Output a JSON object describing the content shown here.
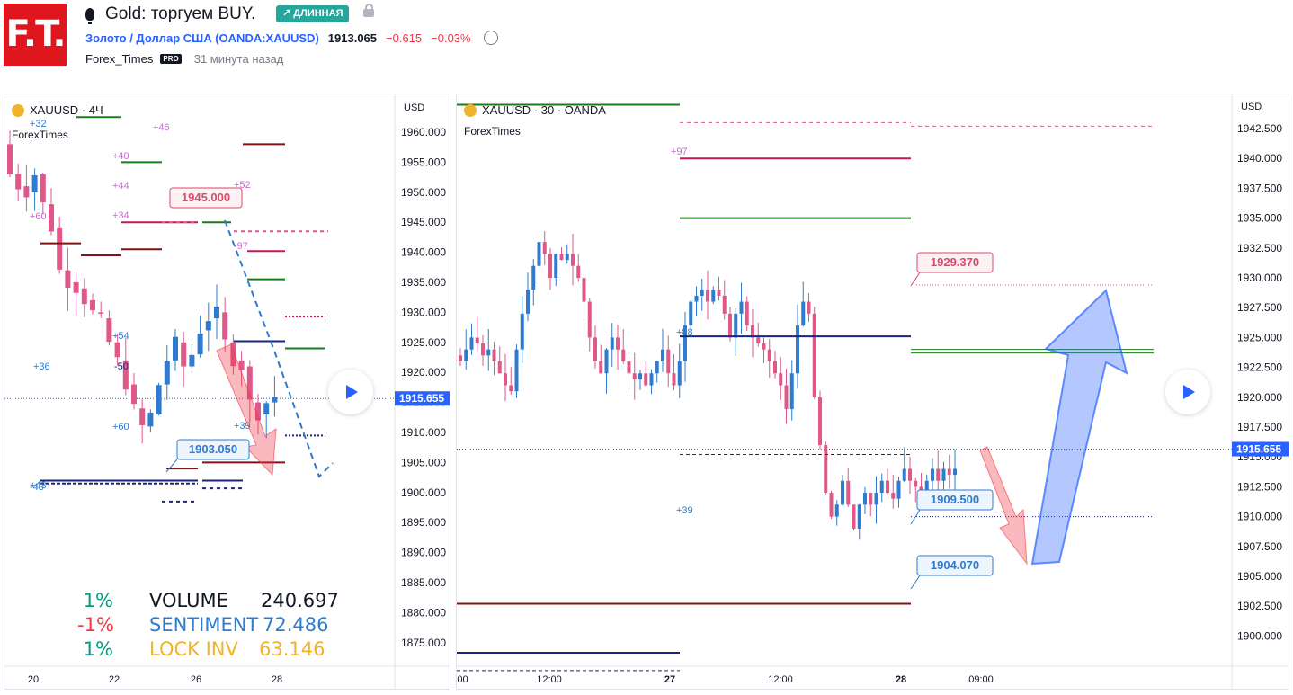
{
  "header": {
    "logo_text": "F.T.",
    "idea_title": "Gold: торгуем BUY.",
    "direction_badge": "↗ ДЛИННАЯ",
    "symbol_name": "Золото / Доллар США (OANDA:XAUUSD)",
    "price": "1913.065",
    "change": "−0.615",
    "change_pct": "−0.03%",
    "author": "Forex_Times",
    "author_badge": "PRO",
    "time_ago": "31 минута назад",
    "icons": {
      "idea": "lightbulb-icon",
      "lock": "lock-icon",
      "alarm": "alarm-clock-icon"
    },
    "colors": {
      "logo": "#e0161f",
      "badge": "#26a69a",
      "symbol": "#2962ff",
      "negative": "#f23645"
    }
  },
  "left_chart": {
    "title": "XAUUSD · 4Ч",
    "subtitle": "ForexTimes",
    "currency": "USD",
    "price_ticks": [
      "1960.000",
      "1955.000",
      "1950.000",
      "1945.000",
      "1940.000",
      "1935.000",
      "1930.000",
      "1925.000",
      "1920.000",
      "1915.000",
      "1910.000",
      "1905.000",
      "1900.000",
      "1895.000",
      "1890.000",
      "1885.000",
      "1880.000",
      "1875.000"
    ],
    "time_ticks": [
      "20",
      "22",
      "26",
      "28"
    ],
    "current_price_label": "1915.655",
    "callouts": [
      "1945.000",
      "1903.050"
    ],
    "level_tags": [
      "+32",
      "+46",
      "+40",
      "+44",
      "+52",
      "+34",
      "+60",
      "-97",
      "-43",
      "+54",
      "+36",
      "-50",
      "+60",
      "+39",
      "+43"
    ],
    "stats": [
      {
        "pct": "1%",
        "label": "VOLUME",
        "value": "240.697",
        "pct_color": "#089981",
        "label_color": "#131722"
      },
      {
        "pct": "-1%",
        "label": "SENTIMENT",
        "value": "72.486",
        "pct_color": "#f23645",
        "label_color": "#2e7bcf"
      },
      {
        "pct": "1%",
        "label": "LOCK INV",
        "value": "63.146",
        "pct_color": "#089981",
        "label_color": "#f0b32b"
      }
    ]
  },
  "right_chart": {
    "title": "XAUUSD · 30 · OANDA",
    "subtitle": "ForexTimes",
    "currency": "USD",
    "price_ticks": [
      "1942.500",
      "1940.000",
      "1937.500",
      "1935.000",
      "1932.500",
      "1930.000",
      "1927.500",
      "1925.000",
      "1922.500",
      "1920.000",
      "1917.500",
      "1915.000",
      "1912.500",
      "1910.000",
      "1907.500",
      "1905.000",
      "1902.500",
      "1900.000"
    ],
    "time_ticks": [
      ":00",
      "12:00",
      "27",
      "12:00",
      "28",
      "09:00"
    ],
    "current_price_label": "1915.655",
    "callouts": [
      "1929.370",
      "1909.500",
      "1904.070"
    ],
    "level_tags": [
      "+97",
      "+88",
      "+39"
    ]
  }
}
